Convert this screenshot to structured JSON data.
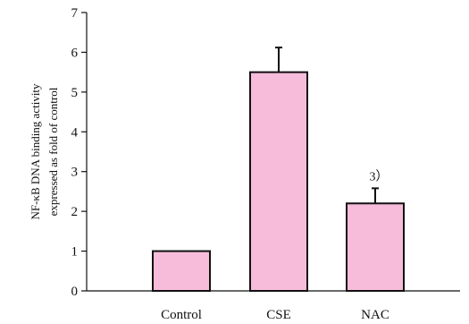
{
  "chart_data": {
    "type": "bar",
    "title": "",
    "xlabel": "",
    "ylabel_lines": [
      "NF-κB DNA binding activity",
      "expressed as fold of control"
    ],
    "ylim": [
      0,
      7
    ],
    "yticks": [
      0,
      1,
      2,
      3,
      4,
      5,
      6,
      7
    ],
    "categories": [
      "Control",
      "CSE",
      "NAC"
    ],
    "values": [
      1.0,
      5.5,
      2.2
    ],
    "errors": [
      0,
      0.62,
      0.38
    ],
    "annotations": [
      "",
      "",
      "3）"
    ],
    "bar_color": "#f6bcd9",
    "edge_color": "#111111",
    "grid": false,
    "legend": "none"
  }
}
